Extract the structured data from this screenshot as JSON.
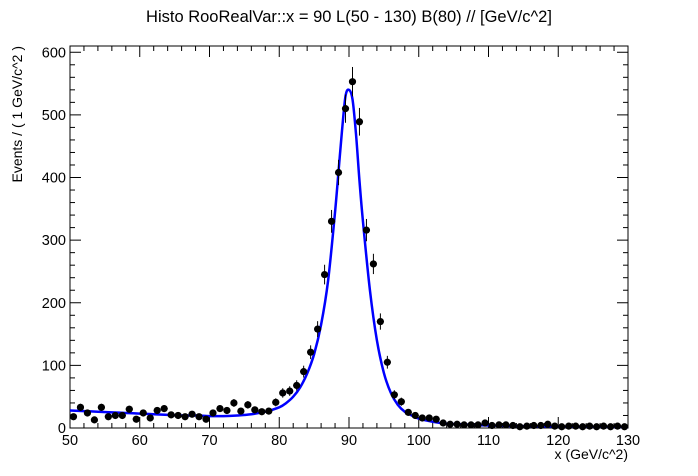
{
  "chart_data": {
    "type": "scatter",
    "title": "Histo RooRealVar::x = 90  L(50 - 130) B(80) // [GeV/c^2]",
    "xlabel": "x (GeV/c^2)",
    "ylabel": "Events / ( 1 GeV/c^2 )",
    "xlim": [
      50,
      130
    ],
    "ylim": [
      0,
      610
    ],
    "x_ticks": [
      "50",
      "60",
      "70",
      "80",
      "90",
      "100",
      "110",
      "120",
      "130"
    ],
    "y_ticks": [
      "0",
      "100",
      "200",
      "300",
      "400",
      "500",
      "600"
    ],
    "grid": false,
    "legend": "none",
    "colors": {
      "points": "#000000",
      "fit": "#0000ff"
    },
    "series": [
      {
        "kind": "points_with_errorbars",
        "x": [
          50.5,
          51.5,
          52.5,
          53.5,
          54.5,
          55.5,
          56.5,
          57.5,
          58.5,
          59.5,
          60.5,
          61.5,
          62.5,
          63.5,
          64.5,
          65.5,
          66.5,
          67.5,
          68.5,
          69.5,
          70.5,
          71.5,
          72.5,
          73.5,
          74.5,
          75.5,
          76.5,
          77.5,
          78.5,
          79.5,
          80.5,
          81.5,
          82.5,
          83.5,
          84.5,
          85.5,
          86.5,
          87.5,
          88.5,
          89.5,
          90.5,
          91.5,
          92.5,
          93.5,
          94.5,
          95.5,
          96.5,
          97.5,
          98.5,
          99.5,
          100.5,
          101.5,
          102.5,
          103.5,
          104.5,
          105.5,
          106.5,
          107.5,
          108.5,
          109.5,
          110.5,
          111.5,
          112.5,
          113.5,
          114.5,
          115.5,
          116.5,
          117.5,
          118.5,
          119.5,
          120.5,
          121.5,
          122.5,
          123.5,
          124.5,
          125.5,
          126.5,
          127.5,
          128.5,
          129.5
        ],
        "y": [
          18,
          33,
          24,
          13,
          33,
          18,
          20,
          20,
          30,
          14,
          24,
          16,
          28,
          31,
          21,
          20,
          18,
          22,
          18,
          14,
          24,
          31,
          28,
          40,
          27,
          37,
          29,
          26,
          27,
          41,
          56,
          59,
          68,
          90,
          121,
          158,
          245,
          330,
          408,
          510,
          553,
          489,
          316,
          262,
          170,
          105,
          53,
          42,
          25,
          20,
          16,
          16,
          14,
          8,
          6,
          6,
          5,
          5,
          5,
          8,
          4,
          5,
          5,
          4,
          2,
          3,
          4,
          4,
          6,
          3,
          2,
          3,
          3,
          2,
          3,
          2,
          3,
          2,
          3,
          2
        ],
        "yerr": [
          4.2,
          5.7,
          4.9,
          3.6,
          5.7,
          4.2,
          4.5,
          4.5,
          5.5,
          3.7,
          4.9,
          4.0,
          5.3,
          5.6,
          4.6,
          4.5,
          4.2,
          4.7,
          4.2,
          3.7,
          4.9,
          5.6,
          5.3,
          6.3,
          5.2,
          6.1,
          5.4,
          5.1,
          5.2,
          6.4,
          7.5,
          7.7,
          8.2,
          9.5,
          11.0,
          12.6,
          15.7,
          18.2,
          20.2,
          22.6,
          23.5,
          22.1,
          17.8,
          16.2,
          13.0,
          10.2,
          7.3,
          6.5,
          5.0,
          4.5,
          4.0,
          4.0,
          3.7,
          2.8,
          2.4,
          2.4,
          2.2,
          2.2,
          2.2,
          2.8,
          2.0,
          2.2,
          2.2,
          2.0,
          1.4,
          1.7,
          2.0,
          2.0,
          2.4,
          1.7,
          1.4,
          1.7,
          1.7,
          1.4,
          1.7,
          1.4,
          1.7,
          1.4,
          1.7,
          1.4
        ]
      },
      {
        "kind": "fit_curve",
        "x": [
          50,
          52,
          54,
          56,
          58,
          60,
          62,
          64,
          66,
          68,
          70,
          72,
          74,
          76,
          78,
          80,
          81,
          82,
          83,
          84,
          85,
          86,
          87,
          88,
          88.5,
          89,
          89.5,
          90,
          90.5,
          91,
          91.5,
          92,
          93,
          94,
          95,
          96,
          97,
          98,
          99,
          100,
          102,
          104,
          106,
          108,
          110,
          114,
          118,
          122,
          126,
          130
        ],
        "y": [
          28,
          27,
          26,
          25,
          24,
          23,
          22,
          21,
          20,
          20,
          19,
          19,
          20,
          22,
          26,
          33,
          40,
          50,
          65,
          87,
          118,
          165,
          235,
          345,
          410,
          475,
          530,
          540,
          525,
          470,
          395,
          330,
          220,
          140,
          88,
          56,
          37,
          26,
          20,
          15,
          10,
          7,
          6,
          5,
          4,
          3,
          2.5,
          2,
          2,
          1.5
        ]
      }
    ]
  }
}
